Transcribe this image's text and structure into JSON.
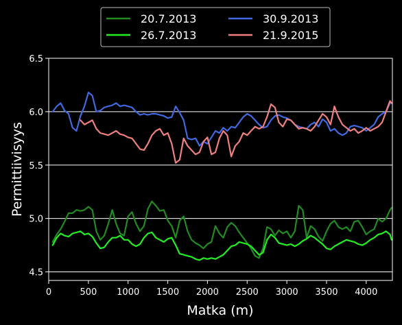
{
  "chart_data": {
    "type": "line",
    "xlabel": "Matka (m)",
    "ylabel": "Permittiivisyys",
    "xlim": [
      0,
      4330
    ],
    "ylim": [
      4.42,
      6.5
    ],
    "xticks": [
      0,
      500,
      1000,
      1500,
      2000,
      2500,
      3000,
      3500,
      4000
    ],
    "yticks": [
      4.5,
      5.0,
      5.5,
      6.0,
      6.5
    ],
    "ytick_labels": [
      "4.5",
      "5.0",
      "5.5",
      "6.0",
      "6.5"
    ],
    "grid": "horizontal",
    "legend_position": "top-center, above plot",
    "series": [
      {
        "name": "20.7.2013",
        "color": "#228b22",
        "x": [
          50,
          100,
          150,
          200,
          250,
          300,
          350,
          400,
          450,
          500,
          550,
          600,
          650,
          700,
          750,
          800,
          850,
          900,
          950,
          1000,
          1050,
          1100,
          1150,
          1200,
          1250,
          1300,
          1350,
          1400,
          1450,
          1500,
          1550,
          1600,
          1650,
          1700,
          1750,
          1800,
          1850,
          1900,
          1950,
          2000,
          2050,
          2100,
          2150,
          2200,
          2250,
          2300,
          2350,
          2400,
          2450,
          2500,
          2550,
          2600,
          2650,
          2700,
          2750,
          2800,
          2850,
          2900,
          2950,
          3000,
          3050,
          3100,
          3150,
          3200,
          3250,
          3300,
          3350,
          3400,
          3450,
          3500,
          3550,
          3600,
          3650,
          3700,
          3750,
          3800,
          3850,
          3900,
          3950,
          4000,
          4050,
          4100,
          4150,
          4200,
          4250,
          4300,
          4320
        ],
        "values": [
          4.78,
          4.85,
          4.9,
          4.97,
          5.05,
          5.05,
          5.08,
          5.07,
          5.08,
          5.11,
          5.08,
          4.88,
          4.8,
          4.84,
          4.95,
          5.08,
          4.95,
          4.86,
          4.84,
          5.02,
          5.06,
          4.95,
          4.88,
          4.93,
          5.09,
          5.16,
          5.12,
          5.07,
          5.08,
          4.98,
          4.93,
          4.82,
          4.98,
          5.02,
          4.88,
          4.8,
          4.77,
          4.75,
          4.72,
          4.76,
          4.78,
          4.93,
          4.86,
          4.82,
          4.92,
          4.96,
          4.93,
          4.87,
          4.82,
          4.77,
          4.72,
          4.65,
          4.63,
          4.72,
          4.92,
          4.9,
          4.84,
          4.89,
          4.86,
          4.88,
          4.82,
          4.88,
          5.12,
          5.08,
          4.82,
          4.93,
          4.9,
          4.83,
          4.79,
          4.88,
          4.95,
          4.98,
          4.92,
          4.9,
          4.92,
          4.88,
          4.97,
          4.98,
          4.92,
          4.85,
          4.88,
          4.9,
          5.0,
          4.97,
          5.0,
          5.08,
          5.1
        ]
      },
      {
        "name": "26.7.2013",
        "color": "#22ee22",
        "x": [
          50,
          100,
          150,
          200,
          250,
          300,
          350,
          400,
          450,
          500,
          550,
          600,
          650,
          700,
          750,
          800,
          850,
          900,
          950,
          1000,
          1050,
          1100,
          1150,
          1200,
          1250,
          1300,
          1350,
          1400,
          1450,
          1500,
          1550,
          1600,
          1650,
          1700,
          1750,
          1800,
          1850,
          1900,
          1950,
          2000,
          2050,
          2100,
          2150,
          2200,
          2250,
          2300,
          2350,
          2400,
          2450,
          2500,
          2550,
          2600,
          2650,
          2700,
          2750,
          2800,
          2850,
          2900,
          2950,
          3000,
          3050,
          3100,
          3150,
          3200,
          3250,
          3300,
          3350,
          3400,
          3450,
          3500,
          3550,
          3600,
          3650,
          3700,
          3750,
          3800,
          3850,
          3900,
          3950,
          4000,
          4050,
          4100,
          4150,
          4200,
          4250,
          4300,
          4320
        ],
        "values": [
          4.75,
          4.82,
          4.86,
          4.84,
          4.83,
          4.86,
          4.87,
          4.88,
          4.85,
          4.86,
          4.83,
          4.77,
          4.72,
          4.73,
          4.78,
          4.82,
          4.82,
          4.84,
          4.8,
          4.8,
          4.76,
          4.74,
          4.76,
          4.82,
          4.86,
          4.87,
          4.82,
          4.8,
          4.78,
          4.81,
          4.82,
          4.75,
          4.67,
          4.66,
          4.65,
          4.64,
          4.62,
          4.61,
          4.63,
          4.62,
          4.63,
          4.62,
          4.64,
          4.66,
          4.7,
          4.74,
          4.75,
          4.78,
          4.77,
          4.76,
          4.74,
          4.7,
          4.66,
          4.68,
          4.8,
          4.85,
          4.82,
          4.77,
          4.76,
          4.75,
          4.76,
          4.74,
          4.76,
          4.79,
          4.81,
          4.84,
          4.82,
          4.79,
          4.76,
          4.72,
          4.71,
          4.74,
          4.76,
          4.78,
          4.8,
          4.79,
          4.78,
          4.76,
          4.75,
          4.77,
          4.8,
          4.82,
          4.85,
          4.86,
          4.88,
          4.85,
          4.8
        ]
      },
      {
        "name": "30.9.2013",
        "color": "#4169e1",
        "x": [
          50,
          100,
          150,
          200,
          250,
          300,
          350,
          400,
          450,
          500,
          550,
          600,
          650,
          700,
          750,
          800,
          850,
          900,
          950,
          1000,
          1050,
          1100,
          1150,
          1200,
          1250,
          1300,
          1350,
          1400,
          1450,
          1500,
          1550,
          1600,
          1650,
          1700,
          1750,
          1800,
          1850,
          1900,
          1950,
          2000,
          2050,
          2100,
          2150,
          2200,
          2250,
          2300,
          2350,
          2400,
          2450,
          2500,
          2550,
          2600,
          2650,
          2700,
          2750,
          2800,
          2850,
          2900,
          2950,
          3000,
          3050,
          3100,
          3150,
          3200,
          3250,
          3300,
          3350,
          3400,
          3450,
          3500,
          3550,
          3600,
          3650,
          3700,
          3750,
          3800,
          3850,
          3900,
          3950,
          4000,
          4050,
          4100,
          4150,
          4200,
          4250,
          4300,
          4320
        ],
        "values": [
          6.0,
          6.05,
          6.08,
          6.01,
          5.98,
          5.85,
          5.82,
          5.96,
          6.05,
          6.18,
          6.15,
          6.0,
          6.01,
          6.04,
          6.05,
          6.06,
          6.08,
          6.05,
          6.06,
          6.05,
          6.04,
          6.0,
          5.97,
          5.98,
          5.97,
          5.98,
          5.98,
          5.97,
          5.96,
          5.94,
          5.95,
          6.05,
          5.99,
          5.92,
          5.75,
          5.74,
          5.75,
          5.68,
          5.72,
          5.7,
          5.76,
          5.82,
          5.8,
          5.85,
          5.82,
          5.86,
          5.85,
          5.9,
          5.95,
          5.98,
          5.96,
          5.92,
          5.88,
          5.85,
          5.86,
          5.92,
          5.96,
          5.97,
          5.95,
          5.94,
          5.92,
          5.88,
          5.86,
          5.85,
          5.84,
          5.88,
          5.9,
          5.86,
          5.93,
          5.9,
          5.82,
          5.84,
          5.8,
          5.78,
          5.8,
          5.86,
          5.87,
          5.86,
          5.85,
          5.82,
          5.85,
          5.88,
          5.95,
          5.98,
          6.0,
          6.08,
          6.08
        ]
      },
      {
        "name": "21.9.2015",
        "color": "#f08080",
        "x": [
          400,
          450,
          500,
          550,
          600,
          650,
          700,
          750,
          800,
          850,
          900,
          950,
          1000,
          1050,
          1100,
          1150,
          1200,
          1250,
          1300,
          1350,
          1400,
          1450,
          1500,
          1550,
          1600,
          1650,
          1700,
          1750,
          1800,
          1850,
          1900,
          1950,
          2000,
          2050,
          2100,
          2150,
          2200,
          2250,
          2300,
          2350,
          2400,
          2450,
          2500,
          2550,
          2600,
          2650,
          2700,
          2750,
          2800,
          2850,
          2900,
          2950,
          3000,
          3050,
          3100,
          3150,
          3200,
          3250,
          3300,
          3350,
          3400,
          3450,
          3500,
          3550,
          3600,
          3650,
          3700,
          3750,
          3800,
          3850,
          3900,
          3950,
          4000,
          4050,
          4100,
          4150,
          4200,
          4250,
          4300,
          4320
        ],
        "values": [
          5.92,
          5.88,
          5.9,
          5.92,
          5.84,
          5.8,
          5.79,
          5.78,
          5.8,
          5.82,
          5.79,
          5.78,
          5.76,
          5.75,
          5.7,
          5.65,
          5.64,
          5.7,
          5.78,
          5.82,
          5.84,
          5.78,
          5.8,
          5.7,
          5.52,
          5.55,
          5.75,
          5.68,
          5.64,
          5.6,
          5.62,
          5.72,
          5.76,
          5.6,
          5.62,
          5.75,
          5.82,
          5.78,
          5.58,
          5.68,
          5.72,
          5.8,
          5.78,
          5.82,
          5.86,
          5.84,
          5.86,
          5.95,
          6.07,
          6.04,
          5.9,
          5.86,
          5.93,
          5.92,
          5.88,
          5.84,
          5.85,
          5.84,
          5.82,
          5.86,
          5.92,
          5.98,
          5.95,
          5.88,
          6.05,
          5.95,
          5.88,
          5.85,
          5.82,
          5.84,
          5.8,
          5.82,
          5.85,
          5.82,
          5.84,
          5.86,
          5.9,
          6.0,
          6.1,
          6.08
        ]
      }
    ]
  }
}
